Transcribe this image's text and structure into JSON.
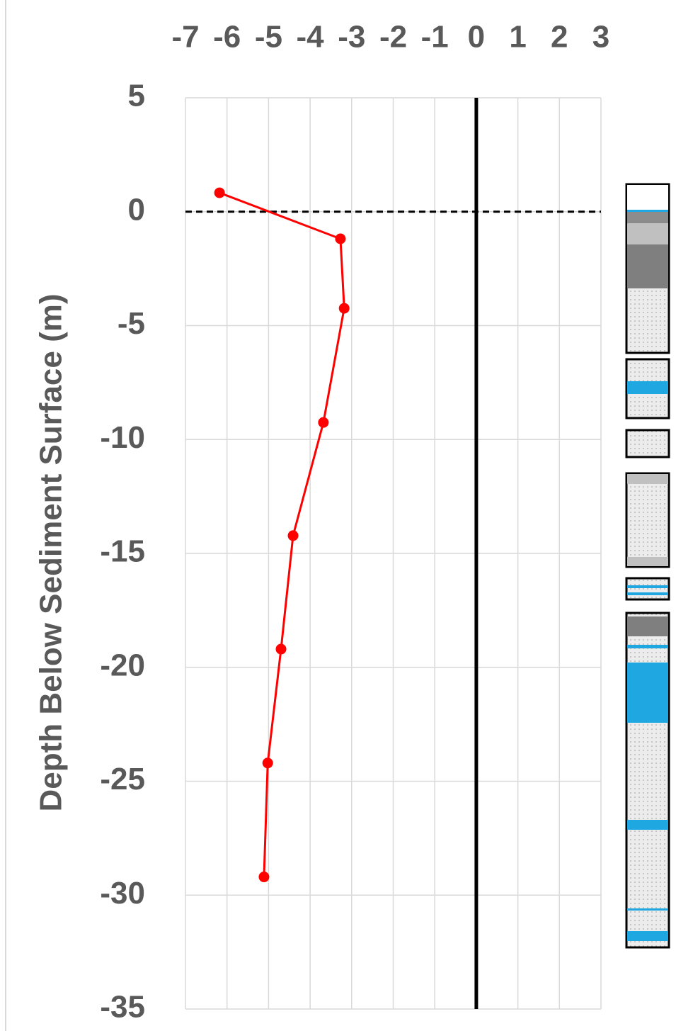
{
  "chart_data": {
    "type": "line",
    "y_label": "Depth Below Sediment Surface (m)",
    "xlim": [
      -7,
      3
    ],
    "xticks": [
      -7,
      -6,
      -5,
      -4,
      -3,
      -2,
      -1,
      0,
      1,
      2,
      3
    ],
    "ylim": [
      -35,
      5
    ],
    "yticks": [
      5,
      0,
      -5,
      -10,
      -15,
      -20,
      -25,
      -30,
      -35
    ],
    "grid": true,
    "hline": 0,
    "vline": 0,
    "series": [
      {
        "color": "#ff0000",
        "x": [
          -6.18,
          -3.27,
          -3.18,
          -3.68,
          -4.41,
          -4.7,
          -5.02,
          -5.11
        ],
        "values": [
          0.83,
          -1.19,
          -4.24,
          -9.25,
          -14.22,
          -19.2,
          -24.2,
          -29.2
        ]
      }
    ]
  }
}
